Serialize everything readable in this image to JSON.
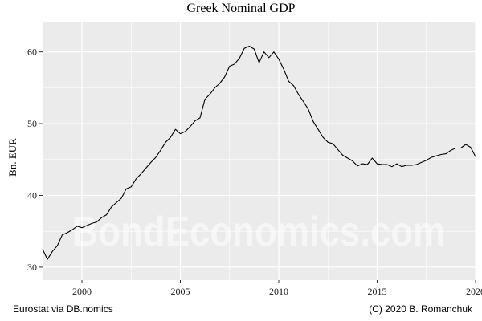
{
  "chart": {
    "title": "Greek Nominal GDP",
    "ylabel": "Bn. EUR",
    "caption_left": "Eurostat via DB.nomics",
    "caption_right": "(C) 2020 B. Romanchuk",
    "watermark": "BondEconomics.com",
    "colors": {
      "panel": "#EBEBEB",
      "grid": "#FFFFFF",
      "line": "#000000"
    }
  },
  "chart_data": {
    "type": "line",
    "title": "Greek Nominal GDP",
    "xlabel": "",
    "ylabel": "Bn. EUR",
    "xlim": [
      1998,
      2020
    ],
    "ylim": [
      28.2,
      64.1
    ],
    "x_ticks": [
      2000,
      2005,
      2010,
      2015,
      2020
    ],
    "x_tick_labels": [
      "2000",
      "2005",
      "2010",
      "2015",
      "2020"
    ],
    "y_ticks": [
      30,
      40,
      50,
      60
    ],
    "y_tick_labels": [
      "30",
      "40",
      "50",
      "60"
    ],
    "grid": true,
    "legend": "none",
    "series": [
      {
        "name": "Greek Nominal GDP (quarterly)",
        "x": [
          1998.0,
          1998.25,
          1998.5,
          1998.75,
          1999.0,
          1999.25,
          1999.5,
          1999.75,
          2000.0,
          2000.25,
          2000.5,
          2000.75,
          2001.0,
          2001.25,
          2001.5,
          2001.75,
          2002.0,
          2002.25,
          2002.5,
          2002.75,
          2003.0,
          2003.25,
          2003.5,
          2003.75,
          2004.0,
          2004.25,
          2004.5,
          2004.75,
          2005.0,
          2005.25,
          2005.5,
          2005.75,
          2006.0,
          2006.25,
          2006.5,
          2006.75,
          2007.0,
          2007.25,
          2007.5,
          2007.75,
          2008.0,
          2008.25,
          2008.5,
          2008.75,
          2009.0,
          2009.25,
          2009.5,
          2009.75,
          2010.0,
          2010.25,
          2010.5,
          2010.75,
          2011.0,
          2011.25,
          2011.5,
          2011.75,
          2012.0,
          2012.25,
          2012.5,
          2012.75,
          2013.0,
          2013.25,
          2013.5,
          2013.75,
          2014.0,
          2014.25,
          2014.5,
          2014.75,
          2015.0,
          2015.25,
          2015.5,
          2015.75,
          2016.0,
          2016.25,
          2016.5,
          2016.75,
          2017.0,
          2017.25,
          2017.5,
          2017.75,
          2018.0,
          2018.25,
          2018.5,
          2018.75,
          2019.0,
          2019.25,
          2019.5,
          2019.75,
          2020.0
        ],
        "values": [
          32.5,
          31.1,
          32.2,
          33.0,
          34.5,
          34.8,
          35.2,
          35.7,
          35.5,
          35.8,
          36.1,
          36.3,
          36.9,
          37.3,
          38.4,
          39.0,
          39.6,
          40.9,
          41.2,
          42.3,
          43.0,
          43.8,
          44.6,
          45.3,
          46.3,
          47.4,
          48.1,
          49.2,
          48.6,
          48.9,
          49.6,
          50.4,
          50.8,
          53.4,
          54.1,
          55.0,
          55.6,
          56.5,
          58.0,
          58.3,
          59.1,
          60.5,
          60.8,
          60.4,
          58.5,
          60.0,
          59.2,
          60.0,
          59.0,
          57.6,
          55.9,
          55.3,
          54.1,
          53.1,
          52.0,
          50.3,
          49.2,
          48.1,
          47.4,
          47.2,
          46.4,
          45.6,
          45.2,
          44.8,
          44.1,
          44.4,
          44.3,
          45.2,
          44.4,
          44.3,
          44.3,
          44.0,
          44.4,
          44.0,
          44.2,
          44.2,
          44.3,
          44.6,
          44.9,
          45.3,
          45.5,
          45.7,
          45.8,
          46.3,
          46.6,
          46.6,
          47.1,
          46.7,
          45.4
        ]
      }
    ]
  }
}
